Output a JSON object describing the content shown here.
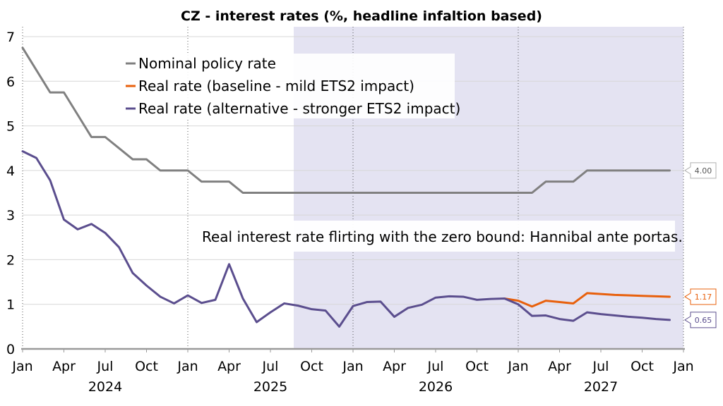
{
  "chart_data": {
    "type": "line",
    "title": "CZ - interest rates (%, headline infaltion based)",
    "xlabel": "",
    "ylabel": "",
    "ylim": [
      0,
      7
    ],
    "y_ticks": [
      "0",
      "1",
      "2",
      "3",
      "4",
      "5",
      "6",
      "7"
    ],
    "x_ticks": [
      "Jan",
      "Apr",
      "Jul",
      "Oct",
      "Jan",
      "Apr",
      "Jul",
      "Oct",
      "Jan",
      "Apr",
      "Jul",
      "Oct",
      "Jan",
      "Apr",
      "Jul",
      "Oct",
      "Jan"
    ],
    "years": [
      "2024",
      "2025",
      "2026",
      "2027"
    ],
    "grid": true,
    "legend_position": "top-left",
    "forecast_shading_from": "2025-09",
    "annotation": "Real interest rate flirting with the zero bound: Hannibal ante portas.",
    "series": [
      {
        "name": "Nominal policy rate",
        "color": "#808080",
        "end_label": "4.00",
        "points": [
          [
            "2024-01",
            6.75
          ],
          [
            "2024-02",
            6.25
          ],
          [
            "2024-03",
            5.75
          ],
          [
            "2024-04",
            5.75
          ],
          [
            "2024-05",
            5.25
          ],
          [
            "2024-06",
            4.75
          ],
          [
            "2024-07",
            4.75
          ],
          [
            "2024-08",
            4.5
          ],
          [
            "2024-09",
            4.25
          ],
          [
            "2024-10",
            4.25
          ],
          [
            "2024-11",
            4.0
          ],
          [
            "2024-12",
            4.0
          ],
          [
            "2025-01",
            4.0
          ],
          [
            "2025-02",
            3.75
          ],
          [
            "2025-03",
            3.75
          ],
          [
            "2025-04",
            3.75
          ],
          [
            "2025-05",
            3.5
          ],
          [
            "2025-06",
            3.5
          ],
          [
            "2025-07",
            3.5
          ],
          [
            "2025-08",
            3.5
          ],
          [
            "2025-09",
            3.5
          ],
          [
            "2025-10",
            3.5
          ],
          [
            "2025-11",
            3.5
          ],
          [
            "2025-12",
            3.5
          ],
          [
            "2026-01",
            3.5
          ],
          [
            "2026-02",
            3.5
          ],
          [
            "2026-03",
            3.5
          ],
          [
            "2026-04",
            3.5
          ],
          [
            "2026-05",
            3.5
          ],
          [
            "2026-06",
            3.5
          ],
          [
            "2026-07",
            3.5
          ],
          [
            "2026-08",
            3.5
          ],
          [
            "2026-09",
            3.5
          ],
          [
            "2026-10",
            3.5
          ],
          [
            "2026-11",
            3.5
          ],
          [
            "2026-12",
            3.5
          ],
          [
            "2027-01",
            3.5
          ],
          [
            "2027-02",
            3.5
          ],
          [
            "2027-03",
            3.75
          ],
          [
            "2027-04",
            3.75
          ],
          [
            "2027-05",
            3.75
          ],
          [
            "2027-06",
            4.0
          ],
          [
            "2027-07",
            4.0
          ],
          [
            "2027-08",
            4.0
          ],
          [
            "2027-09",
            4.0
          ],
          [
            "2027-10",
            4.0
          ],
          [
            "2027-11",
            4.0
          ],
          [
            "2027-12",
            4.0
          ]
        ]
      },
      {
        "name": "Real rate (baseline - mild ETS2 impact)",
        "color": "#e8600c",
        "end_label": "1.17",
        "points": [
          [
            "2026-12",
            1.13
          ],
          [
            "2027-01",
            1.08
          ],
          [
            "2027-02",
            0.95
          ],
          [
            "2027-03",
            1.08
          ],
          [
            "2027-04",
            1.05
          ],
          [
            "2027-05",
            1.02
          ],
          [
            "2027-06",
            1.25
          ],
          [
            "2027-07",
            1.23
          ],
          [
            "2027-08",
            1.21
          ],
          [
            "2027-09",
            1.2
          ],
          [
            "2027-10",
            1.19
          ],
          [
            "2027-11",
            1.18
          ],
          [
            "2027-12",
            1.17
          ]
        ]
      },
      {
        "name": "Real rate (alternative - stronger ETS2 impact)",
        "color": "#5b4e8e",
        "end_label": "0.65",
        "points": [
          [
            "2024-01",
            4.43
          ],
          [
            "2024-02",
            4.28
          ],
          [
            "2024-03",
            3.78
          ],
          [
            "2024-04",
            2.9
          ],
          [
            "2024-05",
            2.68
          ],
          [
            "2024-06",
            2.8
          ],
          [
            "2024-07",
            2.6
          ],
          [
            "2024-08",
            2.28
          ],
          [
            "2024-09",
            1.7
          ],
          [
            "2024-10",
            1.42
          ],
          [
            "2024-11",
            1.17
          ],
          [
            "2024-12",
            1.02
          ],
          [
            "2025-01",
            1.2
          ],
          [
            "2025-02",
            1.03
          ],
          [
            "2025-03",
            1.1
          ],
          [
            "2025-04",
            1.9
          ],
          [
            "2025-05",
            1.13
          ],
          [
            "2025-06",
            0.6
          ],
          [
            "2025-07",
            0.82
          ],
          [
            "2025-08",
            1.02
          ],
          [
            "2025-09",
            0.97
          ],
          [
            "2025-10",
            0.89
          ],
          [
            "2025-11",
            0.86
          ],
          [
            "2025-12",
            0.5
          ],
          [
            "2026-01",
            0.96
          ],
          [
            "2026-02",
            1.05
          ],
          [
            "2026-03",
            1.06
          ],
          [
            "2026-04",
            0.72
          ],
          [
            "2026-05",
            0.92
          ],
          [
            "2026-06",
            0.99
          ],
          [
            "2026-07",
            1.15
          ],
          [
            "2026-08",
            1.18
          ],
          [
            "2026-09",
            1.17
          ],
          [
            "2026-10",
            1.1
          ],
          [
            "2026-11",
            1.12
          ],
          [
            "2026-12",
            1.13
          ],
          [
            "2027-01",
            1.0
          ],
          [
            "2027-02",
            0.74
          ],
          [
            "2027-03",
            0.75
          ],
          [
            "2027-04",
            0.67
          ],
          [
            "2027-05",
            0.63
          ],
          [
            "2027-06",
            0.82
          ],
          [
            "2027-07",
            0.78
          ],
          [
            "2027-08",
            0.75
          ],
          [
            "2027-09",
            0.72
          ],
          [
            "2027-10",
            0.7
          ],
          [
            "2027-11",
            0.67
          ],
          [
            "2027-12",
            0.65
          ]
        ]
      }
    ]
  }
}
